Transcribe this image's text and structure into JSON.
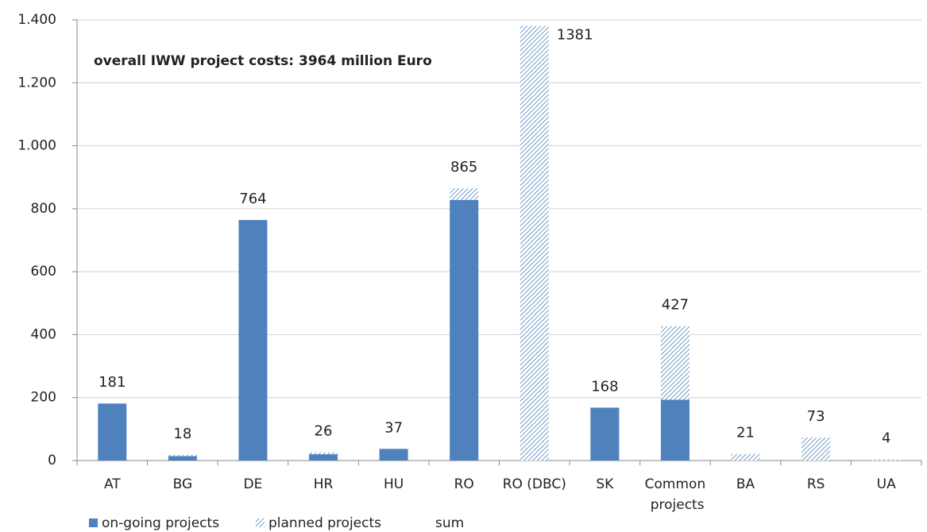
{
  "chart_data": {
    "type": "stacked_bar",
    "annotation": "overall IWW project costs: 3964 million Euro",
    "categories": [
      "AT",
      "BG",
      "DE",
      "HR",
      "HU",
      "RO",
      "RO (DBC)",
      "SK",
      "Common projects",
      "BA",
      "RS",
      "UA"
    ],
    "series": [
      {
        "name": "on-going projects",
        "color": "#4f81bd",
        "values": [
          181,
          14,
          764,
          20,
          37,
          828,
          0,
          168,
          193,
          0,
          0,
          0
        ]
      },
      {
        "name": "planned projects",
        "color": "#4f81bd",
        "pattern": "hatch",
        "values": [
          0,
          4,
          0,
          6,
          0,
          37,
          1381,
          0,
          234,
          21,
          73,
          4
        ]
      },
      {
        "name": "sum",
        "values": [
          181,
          18,
          764,
          26,
          37,
          865,
          1381,
          168,
          427,
          21,
          73,
          4
        ]
      }
    ],
    "ylim": [
      0,
      1400
    ],
    "yticks": [
      0,
      200,
      400,
      600,
      800,
      {
        "value": 1000,
        "label": "1.000"
      },
      {
        "value": 1200,
        "label": "1.200"
      },
      {
        "value": 1400,
        "label": "1.400"
      }
    ],
    "grid": true,
    "legend": "bottom"
  }
}
